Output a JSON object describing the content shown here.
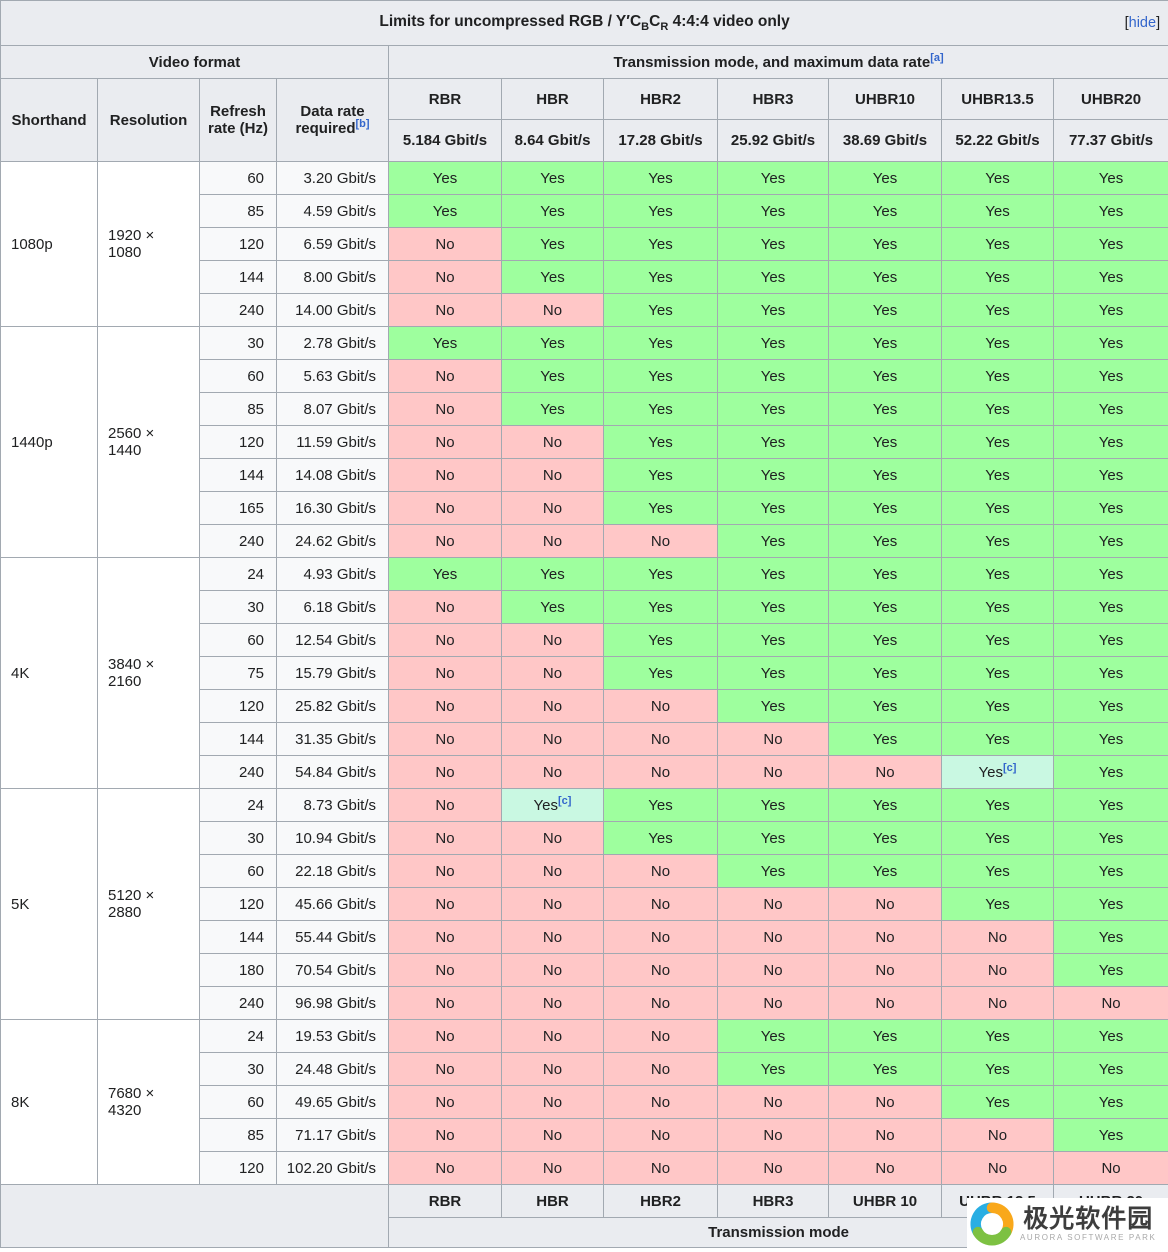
{
  "title": {
    "prefix": "Limits for uncompressed RGB / Y′C",
    "sub1": "B",
    "mid": "C",
    "sub2": "R",
    "suffix": " 4:4:4 video only"
  },
  "collapse": {
    "open": "[",
    "label": "hide",
    "close": "]"
  },
  "refs": {
    "a": "[a]",
    "b": "[b]",
    "c": "[c]"
  },
  "sections": {
    "video_format": "Video format",
    "transmission": "Transmission mode, and maximum data rate"
  },
  "format_columns": {
    "shorthand": "Shorthand",
    "resolution": "Resolution",
    "refresh": "Refresh rate (Hz)",
    "data_rate": "Data rate required"
  },
  "transmission_modes": [
    {
      "name": "RBR",
      "rate": "5.184 Gbit/s"
    },
    {
      "name": "HBR",
      "rate": "8.64 Gbit/s"
    },
    {
      "name": "HBR2",
      "rate": "17.28 Gbit/s"
    },
    {
      "name": "HBR3",
      "rate": "25.92 Gbit/s"
    },
    {
      "name": "UHBR10",
      "rate": "38.69 Gbit/s"
    },
    {
      "name": "UHBR13.5",
      "rate": "52.22 Gbit/s"
    },
    {
      "name": "UHBR20",
      "rate": "77.37 Gbit/s"
    }
  ],
  "cell_labels": {
    "yes": "Yes",
    "no": "No"
  },
  "groups": [
    {
      "shorthand": "1080p",
      "resolution": "1920 × 1080",
      "rows": [
        {
          "hz": "60",
          "rate": "3.20 Gbit/s",
          "modes": [
            "yes",
            "yes",
            "yes",
            "yes",
            "yes",
            "yes",
            "yes"
          ]
        },
        {
          "hz": "85",
          "rate": "4.59 Gbit/s",
          "modes": [
            "yes",
            "yes",
            "yes",
            "yes",
            "yes",
            "yes",
            "yes"
          ]
        },
        {
          "hz": "120",
          "rate": "6.59 Gbit/s",
          "modes": [
            "no",
            "yes",
            "yes",
            "yes",
            "yes",
            "yes",
            "yes"
          ]
        },
        {
          "hz": "144",
          "rate": "8.00 Gbit/s",
          "modes": [
            "no",
            "yes",
            "yes",
            "yes",
            "yes",
            "yes",
            "yes"
          ]
        },
        {
          "hz": "240",
          "rate": "14.00 Gbit/s",
          "modes": [
            "no",
            "no",
            "yes",
            "yes",
            "yes",
            "yes",
            "yes"
          ]
        }
      ]
    },
    {
      "shorthand": "1440p",
      "resolution": "2560 × 1440",
      "rows": [
        {
          "hz": "30",
          "rate": "2.78 Gbit/s",
          "modes": [
            "yes",
            "yes",
            "yes",
            "yes",
            "yes",
            "yes",
            "yes"
          ]
        },
        {
          "hz": "60",
          "rate": "5.63 Gbit/s",
          "modes": [
            "no",
            "yes",
            "yes",
            "yes",
            "yes",
            "yes",
            "yes"
          ]
        },
        {
          "hz": "85",
          "rate": "8.07 Gbit/s",
          "modes": [
            "no",
            "yes",
            "yes",
            "yes",
            "yes",
            "yes",
            "yes"
          ]
        },
        {
          "hz": "120",
          "rate": "11.59 Gbit/s",
          "modes": [
            "no",
            "no",
            "yes",
            "yes",
            "yes",
            "yes",
            "yes"
          ]
        },
        {
          "hz": "144",
          "rate": "14.08 Gbit/s",
          "modes": [
            "no",
            "no",
            "yes",
            "yes",
            "yes",
            "yes",
            "yes"
          ]
        },
        {
          "hz": "165",
          "rate": "16.30 Gbit/s",
          "modes": [
            "no",
            "no",
            "yes",
            "yes",
            "yes",
            "yes",
            "yes"
          ]
        },
        {
          "hz": "240",
          "rate": "24.62 Gbit/s",
          "modes": [
            "no",
            "no",
            "no",
            "yes",
            "yes",
            "yes",
            "yes"
          ]
        }
      ]
    },
    {
      "shorthand": "4K",
      "resolution": "3840 × 2160",
      "rows": [
        {
          "hz": "24",
          "rate": "4.93 Gbit/s",
          "modes": [
            "yes",
            "yes",
            "yes",
            "yes",
            "yes",
            "yes",
            "yes"
          ]
        },
        {
          "hz": "30",
          "rate": "6.18 Gbit/s",
          "modes": [
            "no",
            "yes",
            "yes",
            "yes",
            "yes",
            "yes",
            "yes"
          ]
        },
        {
          "hz": "60",
          "rate": "12.54 Gbit/s",
          "modes": [
            "no",
            "no",
            "yes",
            "yes",
            "yes",
            "yes",
            "yes"
          ]
        },
        {
          "hz": "75",
          "rate": "15.79 Gbit/s",
          "modes": [
            "no",
            "no",
            "yes",
            "yes",
            "yes",
            "yes",
            "yes"
          ]
        },
        {
          "hz": "120",
          "rate": "25.82 Gbit/s",
          "modes": [
            "no",
            "no",
            "no",
            "yes",
            "yes",
            "yes",
            "yes"
          ]
        },
        {
          "hz": "144",
          "rate": "31.35 Gbit/s",
          "modes": [
            "no",
            "no",
            "no",
            "no",
            "yes",
            "yes",
            "yes"
          ]
        },
        {
          "hz": "240",
          "rate": "54.84 Gbit/s",
          "modes": [
            "no",
            "no",
            "no",
            "no",
            "no",
            "yes-c",
            "yes"
          ]
        }
      ]
    },
    {
      "shorthand": "5K",
      "resolution": "5120 × 2880",
      "rows": [
        {
          "hz": "24",
          "rate": "8.73 Gbit/s",
          "modes": [
            "no",
            "yes-c",
            "yes",
            "yes",
            "yes",
            "yes",
            "yes"
          ]
        },
        {
          "hz": "30",
          "rate": "10.94 Gbit/s",
          "modes": [
            "no",
            "no",
            "yes",
            "yes",
            "yes",
            "yes",
            "yes"
          ]
        },
        {
          "hz": "60",
          "rate": "22.18 Gbit/s",
          "modes": [
            "no",
            "no",
            "no",
            "yes",
            "yes",
            "yes",
            "yes"
          ]
        },
        {
          "hz": "120",
          "rate": "45.66 Gbit/s",
          "modes": [
            "no",
            "no",
            "no",
            "no",
            "no",
            "yes",
            "yes"
          ]
        },
        {
          "hz": "144",
          "rate": "55.44 Gbit/s",
          "modes": [
            "no",
            "no",
            "no",
            "no",
            "no",
            "no",
            "yes"
          ]
        },
        {
          "hz": "180",
          "rate": "70.54 Gbit/s",
          "modes": [
            "no",
            "no",
            "no",
            "no",
            "no",
            "no",
            "yes"
          ]
        },
        {
          "hz": "240",
          "rate": "96.98 Gbit/s",
          "modes": [
            "no",
            "no",
            "no",
            "no",
            "no",
            "no",
            "no"
          ]
        }
      ]
    },
    {
      "shorthand": "8K",
      "resolution": "7680 × 4320",
      "rows": [
        {
          "hz": "24",
          "rate": "19.53 Gbit/s",
          "modes": [
            "no",
            "no",
            "no",
            "yes",
            "yes",
            "yes",
            "yes"
          ]
        },
        {
          "hz": "30",
          "rate": "24.48 Gbit/s",
          "modes": [
            "no",
            "no",
            "no",
            "yes",
            "yes",
            "yes",
            "yes"
          ]
        },
        {
          "hz": "60",
          "rate": "49.65 Gbit/s",
          "modes": [
            "no",
            "no",
            "no",
            "no",
            "no",
            "yes",
            "yes"
          ]
        },
        {
          "hz": "85",
          "rate": "71.17 Gbit/s",
          "modes": [
            "no",
            "no",
            "no",
            "no",
            "no",
            "no",
            "yes"
          ]
        },
        {
          "hz": "120",
          "rate": "102.20 Gbit/s",
          "modes": [
            "no",
            "no",
            "no",
            "no",
            "no",
            "no",
            "no"
          ]
        }
      ]
    }
  ],
  "footer": {
    "labels": [
      "RBR",
      "HBR",
      "HBR2",
      "HBR3",
      "UHBR 10",
      "UHBR 13.5",
      "UHBR 20"
    ],
    "caption": "Transmission mode"
  },
  "watermark": {
    "text": "极光软件园",
    "subtext": "AURORA SOFTWARE PARK"
  },
  "colors": {
    "yes_bg": "#9eff9e",
    "no_bg": "#ffc7c7",
    "partial_bg": "#c9f8e2",
    "header_bg": "#eaecf0",
    "border": "#a2a9b1",
    "link": "#3366cc",
    "logo_cyan": "#29aee3",
    "logo_orange": "#f9a81b",
    "logo_green": "#7dc142"
  }
}
